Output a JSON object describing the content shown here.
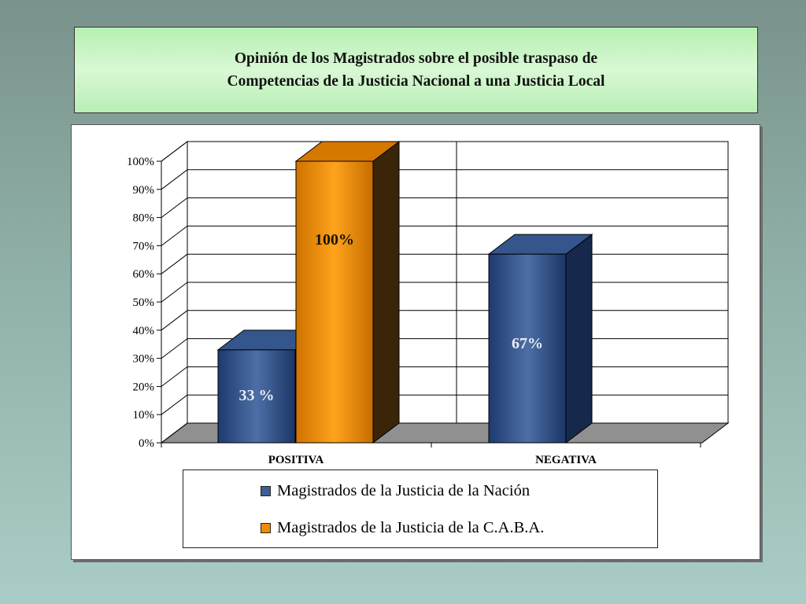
{
  "title": {
    "line1": "Opinión de los Magistrados sobre el posible traspaso de",
    "line2": "Competencias de la Justicia Nacional a una Justicia Local"
  },
  "colors": {
    "nacion": "#2f4f87",
    "caba": "#e88a06",
    "floor": "#909090",
    "grid": "#000000"
  },
  "chart_data": {
    "type": "bar",
    "categories": [
      "POSITIVA",
      "NEGATIVA"
    ],
    "series": [
      {
        "name": "Magistrados de la Justicia de la Nación",
        "values": [
          33,
          67
        ],
        "labels": [
          "33 %",
          "67%"
        ]
      },
      {
        "name": "Magistrados de la Justicia de la C.A.B.A.",
        "values": [
          100,
          null
        ],
        "labels": [
          "100%",
          ""
        ]
      }
    ],
    "yticks": [
      "0%",
      "10%",
      "20%",
      "30%",
      "40%",
      "50%",
      "60%",
      "70%",
      "80%",
      "90%",
      "100%"
    ],
    "ylim": [
      0,
      100
    ],
    "grid": true,
    "legend_position": "bottom",
    "three_d": true
  }
}
